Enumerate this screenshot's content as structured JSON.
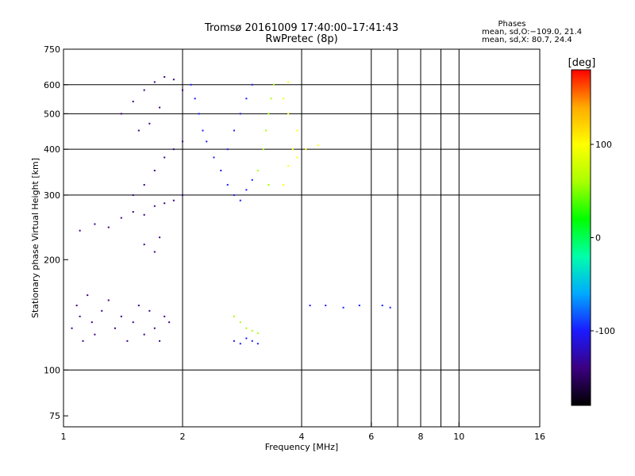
{
  "chart_data": {
    "type": "scatter",
    "title": "Tromsø 20161009 17:40:00–17:41:43",
    "subtitle": "RwPretec (8p)",
    "info": {
      "heading": "Phases",
      "line_o": "mean, sd,O:−109.0, 21.4",
      "line_x": "mean, sd,X:  80.7, 24.4"
    },
    "xlabel": "Frequency [MHz]",
    "ylabel": "Stationary phase Virtual Height [km]",
    "x_scale": "log",
    "y_scale": "log",
    "xlim": [
      1,
      16
    ],
    "ylim": [
      70,
      750
    ],
    "x_ticks": [
      1,
      2,
      4,
      6,
      8,
      10,
      16
    ],
    "y_ticks": [
      75,
      100,
      200,
      300,
      400,
      500,
      600,
      750
    ],
    "grid_x": [
      2,
      4,
      6,
      7,
      8,
      9,
      10
    ],
    "grid_y": [
      100,
      300,
      400,
      500,
      600
    ],
    "colorbar": {
      "unit": "[deg]",
      "ticks": [
        100,
        0,
        -100
      ],
      "range": [
        -180,
        180
      ],
      "colors": [
        "#000000",
        "#3b0080",
        "#1a1aff",
        "#00aaff",
        "#00ffaa",
        "#00ff00",
        "#aaff00",
        "#ffff00",
        "#ffaa00",
        "#ff0000"
      ]
    },
    "series": [
      {
        "color_value": -140,
        "points": [
          [
            1.05,
            130
          ],
          [
            1.08,
            150
          ],
          [
            1.1,
            140
          ],
          [
            1.12,
            120
          ],
          [
            1.15,
            160
          ],
          [
            1.18,
            135
          ],
          [
            1.2,
            125
          ],
          [
            1.25,
            145
          ],
          [
            1.3,
            155
          ],
          [
            1.35,
            130
          ],
          [
            1.4,
            140
          ],
          [
            1.45,
            120
          ],
          [
            1.5,
            135
          ],
          [
            1.55,
            150
          ],
          [
            1.6,
            125
          ],
          [
            1.65,
            145
          ],
          [
            1.7,
            130
          ],
          [
            1.75,
            120
          ],
          [
            1.8,
            140
          ],
          [
            1.85,
            135
          ],
          [
            1.1,
            240
          ],
          [
            1.2,
            250
          ],
          [
            1.3,
            245
          ],
          [
            1.4,
            260
          ],
          [
            1.5,
            270
          ],
          [
            1.6,
            265
          ],
          [
            1.7,
            280
          ],
          [
            1.8,
            285
          ],
          [
            1.9,
            290
          ],
          [
            2.0,
            300
          ],
          [
            1.5,
            300
          ],
          [
            1.6,
            320
          ],
          [
            1.7,
            350
          ],
          [
            1.8,
            380
          ],
          [
            1.9,
            400
          ],
          [
            2.0,
            420
          ],
          [
            1.6,
            220
          ],
          [
            1.7,
            210
          ],
          [
            1.75,
            230
          ],
          [
            1.4,
            500
          ],
          [
            1.5,
            540
          ],
          [
            1.6,
            580
          ],
          [
            1.7,
            610
          ],
          [
            1.8,
            630
          ],
          [
            1.9,
            620
          ],
          [
            2.0,
            580
          ],
          [
            1.55,
            450
          ],
          [
            1.65,
            470
          ],
          [
            1.75,
            520
          ]
        ]
      },
      {
        "color_value": -110,
        "points": [
          [
            2.1,
            600
          ],
          [
            2.15,
            550
          ],
          [
            2.2,
            500
          ],
          [
            2.25,
            450
          ],
          [
            2.3,
            420
          ],
          [
            2.4,
            380
          ],
          [
            2.5,
            350
          ],
          [
            2.6,
            320
          ],
          [
            2.7,
            300
          ],
          [
            2.8,
            290
          ],
          [
            2.9,
            310
          ],
          [
            3.0,
            330
          ],
          [
            2.6,
            400
          ],
          [
            2.7,
            450
          ],
          [
            2.8,
            500
          ],
          [
            2.9,
            550
          ],
          [
            3.0,
            600
          ],
          [
            2.7,
            120
          ],
          [
            2.8,
            118
          ],
          [
            2.9,
            122
          ],
          [
            3.0,
            120
          ],
          [
            3.1,
            118
          ],
          [
            4.2,
            150
          ],
          [
            4.6,
            150
          ],
          [
            5.1,
            148
          ],
          [
            5.6,
            150
          ],
          [
            6.4,
            150
          ],
          [
            6.7,
            148
          ]
        ]
      },
      {
        "color_value": 60,
        "points": [
          [
            3.1,
            350
          ],
          [
            3.2,
            400
          ],
          [
            3.25,
            450
          ],
          [
            3.3,
            500
          ],
          [
            3.35,
            550
          ],
          [
            3.4,
            600
          ],
          [
            3.3,
            320
          ],
          [
            2.7,
            140
          ],
          [
            2.8,
            135
          ],
          [
            2.9,
            130
          ],
          [
            3.0,
            128
          ],
          [
            3.1,
            126
          ]
        ]
      },
      {
        "color_value": 110,
        "points": [
          [
            3.6,
            320
          ],
          [
            3.7,
            360
          ],
          [
            3.8,
            400
          ],
          [
            3.9,
            450
          ],
          [
            3.7,
            500
          ],
          [
            3.6,
            550
          ],
          [
            3.7,
            610
          ],
          [
            3.9,
            380
          ],
          [
            4.1,
            400
          ],
          [
            4.4,
            410
          ]
        ]
      }
    ]
  }
}
